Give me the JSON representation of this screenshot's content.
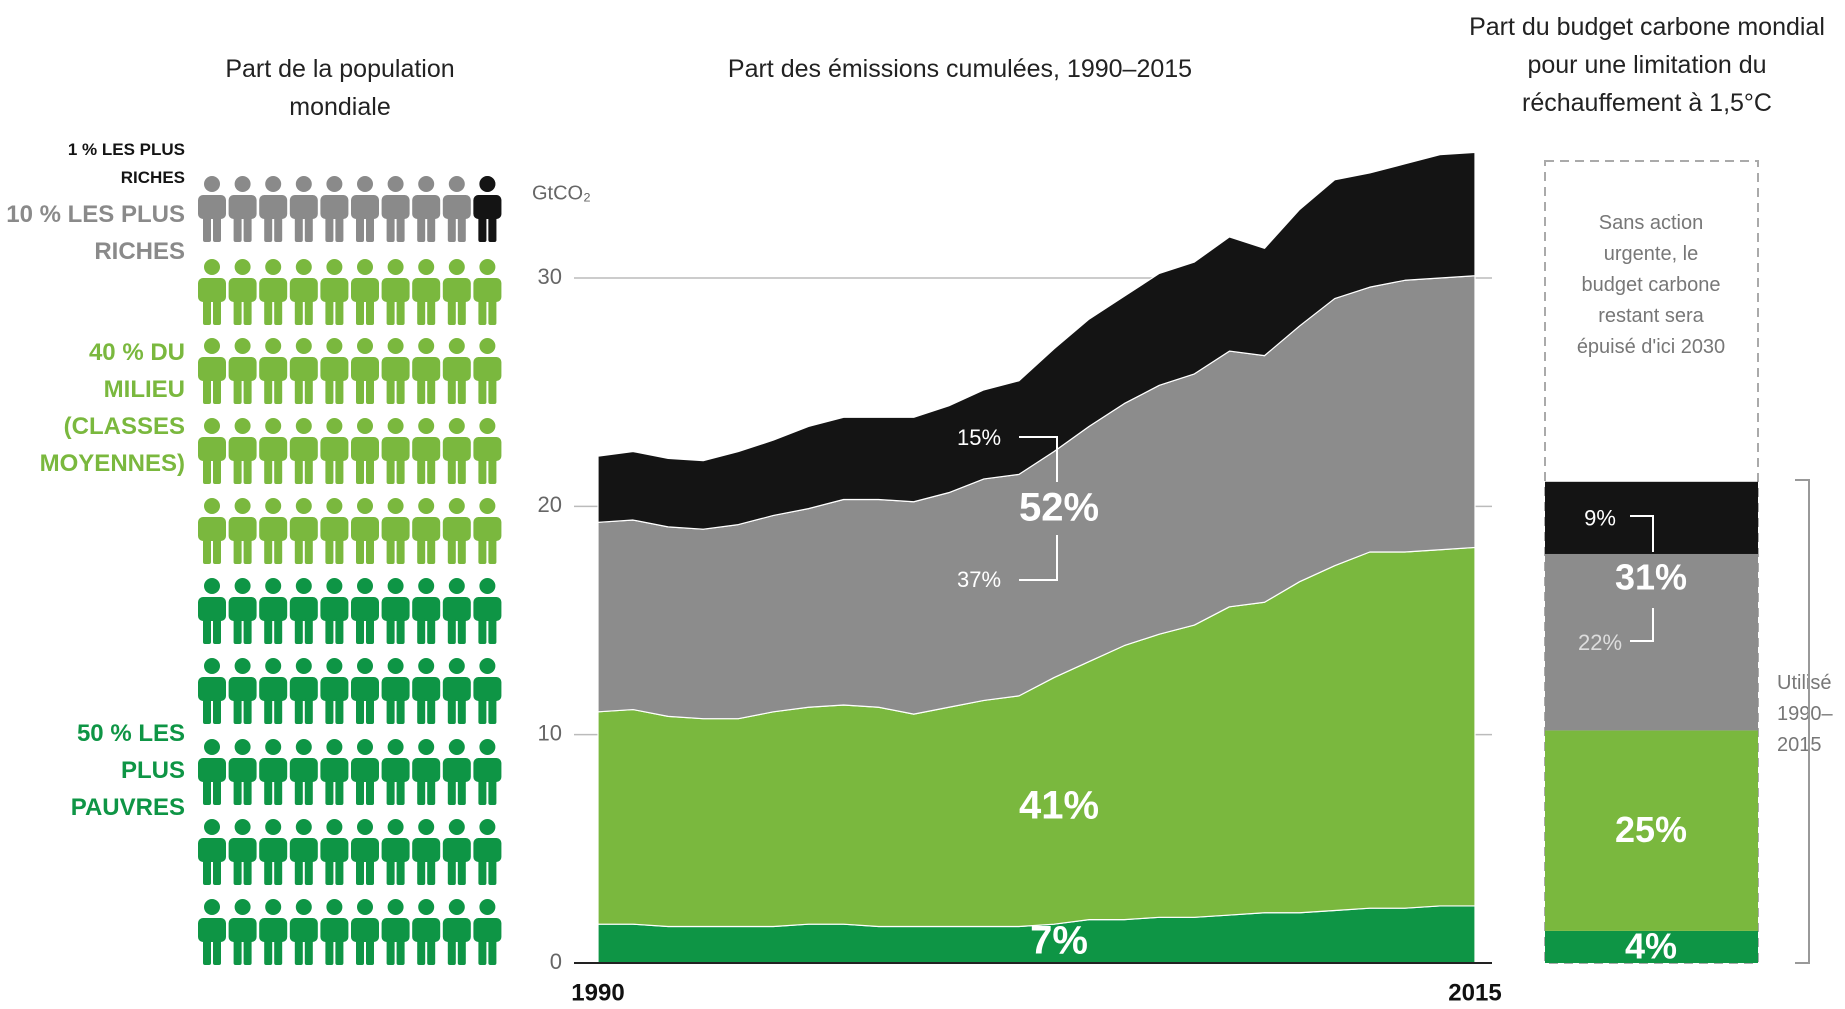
{
  "chart_data": [
    {
      "type": "pictogram",
      "title": "Part de la population mondiale",
      "series": [
        {
          "name": "1 % LES PLUS RICHES",
          "color": "#141414",
          "values": [
            1
          ]
        },
        {
          "name": "10 % LES PLUS RICHES",
          "color": "#8a8a8a",
          "values": [
            10
          ]
        },
        {
          "name": "40 % DU MILIEU (CLASSES MOYENNES)",
          "color": "#7ab83e",
          "values": [
            40
          ]
        },
        {
          "name": "50 % LES PLUS PAUVRES",
          "color": "#0e9545",
          "values": [
            50
          ]
        }
      ]
    },
    {
      "type": "area",
      "title": "Part des émissions cumulées, 1990–2015",
      "y_label": "GtCO₂",
      "stacked": true,
      "x": [
        1990,
        1991,
        1992,
        1993,
        1994,
        1995,
        1996,
        1997,
        1998,
        1999,
        2000,
        2001,
        2002,
        2003,
        2004,
        2005,
        2006,
        2007,
        2008,
        2009,
        2010,
        2011,
        2012,
        2013,
        2014,
        2015
      ],
      "xlim": [
        1990,
        2015
      ],
      "xticks": [
        1990,
        2015
      ],
      "ylim": [
        0,
        36
      ],
      "yticks": [
        0,
        10,
        20,
        30
      ],
      "grid": true,
      "series": [
        {
          "color": "#0e9545",
          "values": [
            1.7,
            1.7,
            1.6,
            1.6,
            1.6,
            1.6,
            1.7,
            1.7,
            1.6,
            1.6,
            1.6,
            1.6,
            1.6,
            1.7,
            1.9,
            1.9,
            2.0,
            2.0,
            2.1,
            2.2,
            2.2,
            2.3,
            2.4,
            2.4,
            2.5,
            2.5
          ]
        },
        {
          "color": "#7ab83e",
          "values": [
            9.3,
            9.4,
            9.2,
            9.1,
            9.1,
            9.4,
            9.5,
            9.6,
            9.6,
            9.3,
            9.6,
            9.9,
            10.1,
            10.8,
            11.3,
            12.0,
            12.4,
            12.8,
            13.5,
            13.6,
            14.5,
            15.1,
            15.6,
            15.6,
            15.6,
            15.7
          ]
        },
        {
          "color": "#8c8c8c",
          "values": [
            8.3,
            8.3,
            8.3,
            8.3,
            8.5,
            8.6,
            8.7,
            9.0,
            9.1,
            9.3,
            9.4,
            9.7,
            9.7,
            9.9,
            10.3,
            10.6,
            10.9,
            11.0,
            11.2,
            10.8,
            11.2,
            11.7,
            11.6,
            11.9,
            11.9,
            11.9
          ]
        },
        {
          "color": "#141414",
          "values": [
            2.9,
            3.0,
            3.0,
            3.0,
            3.2,
            3.3,
            3.6,
            3.6,
            3.6,
            3.7,
            3.8,
            3.9,
            4.1,
            4.5,
            4.7,
            4.7,
            4.9,
            4.9,
            5.0,
            4.7,
            5.1,
            5.2,
            5.0,
            5.1,
            5.4,
            5.4
          ]
        }
      ],
      "annotations": [
        "15%",
        "52%",
        "37%",
        "41%",
        "7%"
      ]
    },
    {
      "type": "stacked_bar",
      "title": "Part du budget carbone mondial pour une limitation du réchauffement à 1,5°C",
      "ylim": [
        0,
        100
      ],
      "values": [
        4,
        25,
        22,
        9
      ],
      "value_labels": [
        "4%",
        "25%",
        "22%",
        "9%"
      ],
      "colors": [
        "#0e9545",
        "#7ab83e",
        "#8c8c8c",
        "#141414"
      ],
      "annotations": [
        "31%"
      ],
      "note": "Sans action urgente, le budget carbone restant sera épuisé d'ici 2030",
      "bracket_label": "Utilisé 1990–2015"
    }
  ]
}
